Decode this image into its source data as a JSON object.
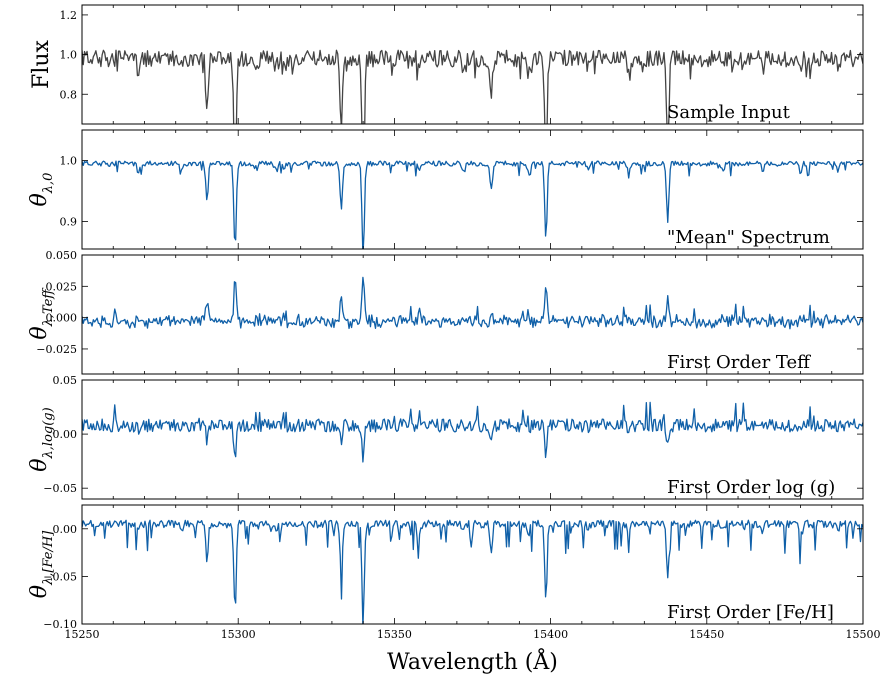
{
  "chart_data": {
    "type": "line",
    "xlabel": "Wavelength (Å)",
    "x_tick_labels": [
      "15250",
      "15300",
      "15350",
      "15400",
      "15450",
      "15500"
    ],
    "xlim": [
      15250,
      15500
    ],
    "lines": [
      {
        "wl": 15290.0,
        "depth": 0.28
      },
      {
        "wl": 15299.0,
        "depth": 0.65
      },
      {
        "wl": 15333.0,
        "depth": 0.36
      },
      {
        "wl": 15340.0,
        "depth": 0.7
      },
      {
        "wl": 15398.5,
        "depth": 0.55
      },
      {
        "wl": 15437.5,
        "depth": 0.42
      },
      {
        "wl": 15381.0,
        "depth": 0.2
      },
      {
        "wl": 15268.0,
        "depth": 0.06
      },
      {
        "wl": 15282.0,
        "depth": 0.05
      },
      {
        "wl": 15312.0,
        "depth": 0.05
      },
      {
        "wl": 15358.0,
        "depth": 0.06
      },
      {
        "wl": 15372.0,
        "depth": 0.05
      },
      {
        "wl": 15393.0,
        "depth": 0.08
      },
      {
        "wl": 15412.0,
        "depth": 0.05
      },
      {
        "wl": 15425.0,
        "depth": 0.05
      },
      {
        "wl": 15455.0,
        "depth": 0.05
      },
      {
        "wl": 15468.0,
        "depth": 0.06
      },
      {
        "wl": 15480.0,
        "depth": 0.07
      },
      {
        "wl": 15492.0,
        "depth": 0.05
      }
    ],
    "panels": [
      {
        "ylabel_main": "Flux",
        "ylabel_sub": "",
        "ylim": [
          0.65,
          1.25
        ],
        "y_ticks": [
          0.8,
          1.0,
          1.2
        ],
        "y_tick_labels": [
          "0.8",
          "1.0",
          "1.2"
        ],
        "annotation": "Sample Input",
        "color": "#444444",
        "series": {
          "kind": "flux",
          "base": 0.98,
          "scale": 1.0,
          "noise": 0.035
        }
      },
      {
        "ylabel_main": "θ",
        "ylabel_sub": "λ,0",
        "ylim": [
          0.855,
          1.05
        ],
        "y_ticks": [
          0.9,
          1.0
        ],
        "y_tick_labels": [
          "0.9",
          "1.0"
        ],
        "annotation": "\"Mean\" Spectrum",
        "color": "#1060a8",
        "series": {
          "kind": "mean",
          "base": 0.995,
          "scale": 0.22,
          "noise": 0.004
        }
      },
      {
        "ylabel_main": "θ",
        "ylabel_sub": "λ,Teff",
        "ylim": [
          -0.045,
          0.05
        ],
        "y_ticks": [
          -0.025,
          0.0,
          0.025,
          0.05
        ],
        "y_tick_labels": [
          "−0.025",
          "0.000",
          "0.025",
          "0.050"
        ],
        "annotation": "First Order Teff",
        "color": "#1060a8",
        "series": {
          "kind": "teff",
          "base": -0.003,
          "scale": 0.05,
          "noise": 0.003
        }
      },
      {
        "ylabel_main": "θ",
        "ylabel_sub": "λ,log(g)",
        "ylim": [
          -0.06,
          0.05
        ],
        "y_ticks": [
          -0.05,
          0.0,
          0.05
        ],
        "y_tick_labels": [
          "−0.05",
          "0.00",
          "0.05"
        ],
        "annotation": "First Order log (g)",
        "color": "#1060a8",
        "series": {
          "kind": "logg",
          "base": 0.008,
          "scale": 0.06,
          "noise": 0.006
        }
      },
      {
        "ylabel_main": "θ",
        "ylabel_sub": "λ,[Fe/H]",
        "ylim": [
          -0.1,
          0.025
        ],
        "y_ticks": [
          -0.1,
          -0.05,
          0.0
        ],
        "y_tick_labels": [
          "−0.10",
          "−0.05",
          "0.00"
        ],
        "annotation": "First Order [Fe/H]",
        "color": "#1060a8",
        "series": {
          "kind": "feh",
          "base": 0.005,
          "scale": 0.14,
          "noise": 0.004
        }
      }
    ]
  }
}
